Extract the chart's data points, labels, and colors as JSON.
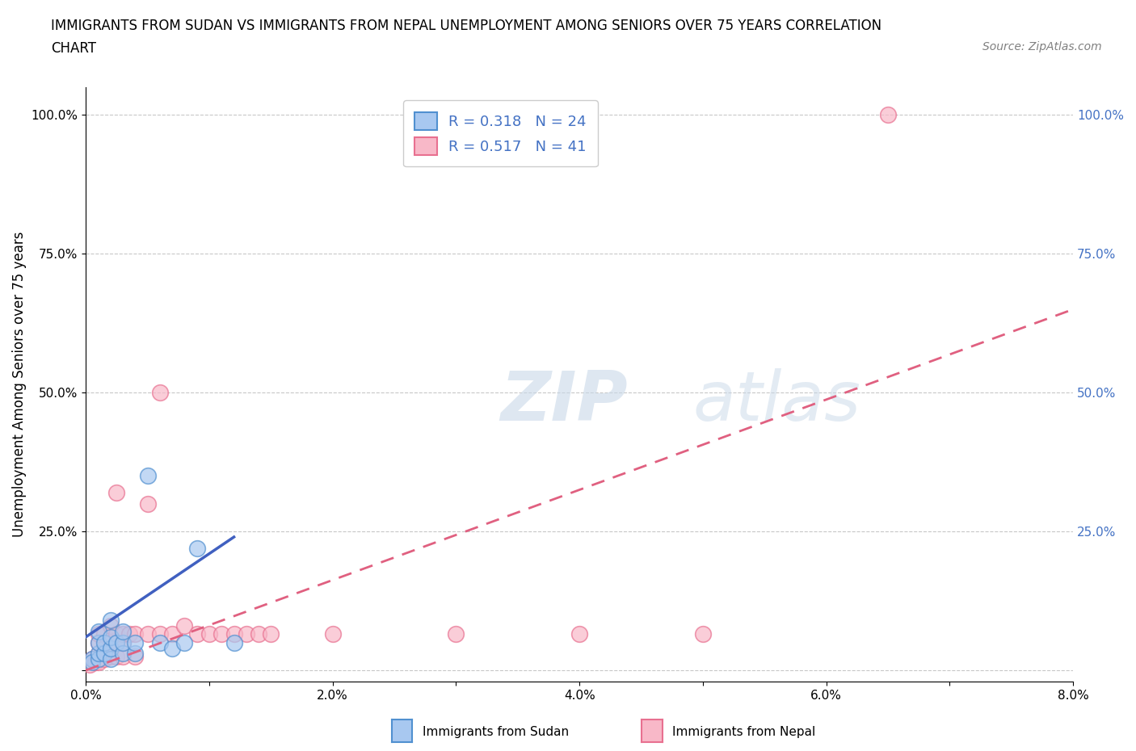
{
  "title_line1": "IMMIGRANTS FROM SUDAN VS IMMIGRANTS FROM NEPAL UNEMPLOYMENT AMONG SENIORS OVER 75 YEARS CORRELATION",
  "title_line2": "CHART",
  "source_text": "Source: ZipAtlas.com",
  "ylabel": "Unemployment Among Seniors over 75 years",
  "xlim": [
    0.0,
    0.08
  ],
  "ylim": [
    -0.02,
    1.05
  ],
  "xtick_values": [
    0.0,
    0.01,
    0.02,
    0.03,
    0.04,
    0.05,
    0.06,
    0.07,
    0.08
  ],
  "xtick_labels": [
    "0.0%",
    "",
    "2.0%",
    "",
    "4.0%",
    "",
    "6.0%",
    "",
    "8.0%"
  ],
  "ytick_values": [
    0.0,
    0.25,
    0.5,
    0.75,
    1.0
  ],
  "ytick_labels": [
    "",
    "25.0%",
    "50.0%",
    "75.0%",
    "100.0%"
  ],
  "grid_color": "#c8c8c8",
  "watermark_zip": "ZIP",
  "watermark_atlas": "atlas",
  "legend_R_sudan": "R = 0.318",
  "legend_N_sudan": "N = 24",
  "legend_R_nepal": "R = 0.517",
  "legend_N_nepal": "N = 41",
  "sudan_color": "#a8c8f0",
  "nepal_color": "#f8b8c8",
  "sudan_edge_color": "#5090d0",
  "nepal_edge_color": "#e87090",
  "sudan_line_color": "#4060c0",
  "nepal_line_color": "#e06080",
  "legend_box_blue": "#a8c8f0",
  "legend_box_pink": "#f8b8c8",
  "label_color_blue": "#4472c4",
  "sudan_scatter": [
    [
      0.0005,
      0.02
    ],
    [
      0.0005,
      0.015
    ],
    [
      0.001,
      0.02
    ],
    [
      0.001,
      0.03
    ],
    [
      0.001,
      0.05
    ],
    [
      0.001,
      0.07
    ],
    [
      0.0015,
      0.03
    ],
    [
      0.0015,
      0.05
    ],
    [
      0.002,
      0.02
    ],
    [
      0.002,
      0.04
    ],
    [
      0.002,
      0.06
    ],
    [
      0.002,
      0.09
    ],
    [
      0.0025,
      0.05
    ],
    [
      0.003,
      0.03
    ],
    [
      0.003,
      0.05
    ],
    [
      0.003,
      0.07
    ],
    [
      0.004,
      0.03
    ],
    [
      0.004,
      0.05
    ],
    [
      0.005,
      0.35
    ],
    [
      0.006,
      0.05
    ],
    [
      0.007,
      0.04
    ],
    [
      0.008,
      0.05
    ],
    [
      0.009,
      0.22
    ],
    [
      0.012,
      0.05
    ]
  ],
  "nepal_scatter": [
    [
      0.0003,
      0.01
    ],
    [
      0.0005,
      0.02
    ],
    [
      0.0008,
      0.015
    ],
    [
      0.001,
      0.015
    ],
    [
      0.001,
      0.03
    ],
    [
      0.001,
      0.05
    ],
    [
      0.001,
      0.065
    ],
    [
      0.0015,
      0.02
    ],
    [
      0.0015,
      0.04
    ],
    [
      0.0015,
      0.065
    ],
    [
      0.002,
      0.025
    ],
    [
      0.002,
      0.05
    ],
    [
      0.002,
      0.08
    ],
    [
      0.0025,
      0.025
    ],
    [
      0.0025,
      0.05
    ],
    [
      0.0025,
      0.065
    ],
    [
      0.0025,
      0.32
    ],
    [
      0.003,
      0.025
    ],
    [
      0.003,
      0.05
    ],
    [
      0.003,
      0.065
    ],
    [
      0.0035,
      0.065
    ],
    [
      0.004,
      0.025
    ],
    [
      0.004,
      0.065
    ],
    [
      0.005,
      0.065
    ],
    [
      0.005,
      0.3
    ],
    [
      0.006,
      0.065
    ],
    [
      0.006,
      0.5
    ],
    [
      0.007,
      0.065
    ],
    [
      0.008,
      0.08
    ],
    [
      0.009,
      0.065
    ],
    [
      0.01,
      0.065
    ],
    [
      0.011,
      0.065
    ],
    [
      0.012,
      0.065
    ],
    [
      0.013,
      0.065
    ],
    [
      0.014,
      0.065
    ],
    [
      0.015,
      0.065
    ],
    [
      0.02,
      0.065
    ],
    [
      0.03,
      0.065
    ],
    [
      0.04,
      0.065
    ],
    [
      0.05,
      0.065
    ],
    [
      0.065,
      1.0
    ]
  ],
  "sudan_trendline": [
    [
      0.0,
      0.06
    ],
    [
      0.012,
      0.24
    ]
  ],
  "nepal_trendline": [
    [
      0.0,
      0.0
    ],
    [
      0.08,
      0.65
    ]
  ],
  "nepal_trendline_style": "dashed",
  "sudan_trendline_style": "solid",
  "background_color": "#ffffff",
  "title_fontsize": 12,
  "axis_label_fontsize": 12,
  "tick_fontsize": 11,
  "legend_fontsize": 13
}
